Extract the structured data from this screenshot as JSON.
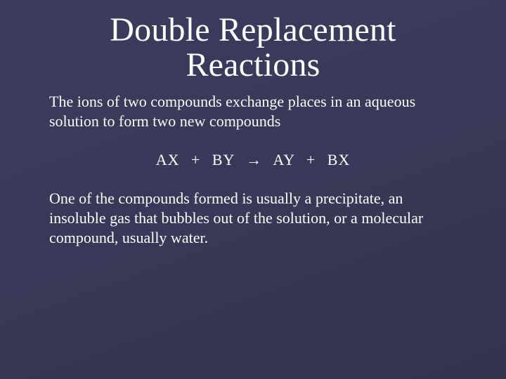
{
  "slide": {
    "background_color": "#3a3a5c",
    "text_color": "#fefefe",
    "font_family": "Palatino Linotype",
    "title": "Double Replacement Reactions",
    "title_fontsize": 48,
    "body_fontsize": 22,
    "paragraph1": "The ions of two compounds exchange places in an aqueous solution to form two new compounds",
    "equation": "AX   +   BY   →   AY   +   BX",
    "paragraph2": "One of the compounds formed is usually a precipitate, an insoluble gas that bubbles out of the solution, or a molecular compound, usually water."
  }
}
